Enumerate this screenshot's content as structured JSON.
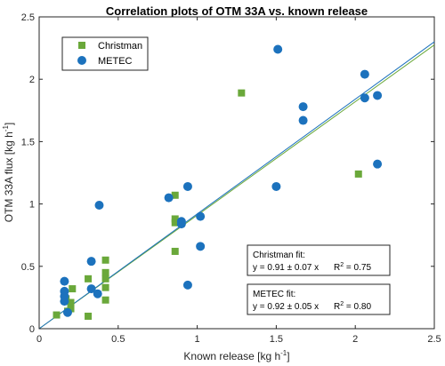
{
  "chart_data": {
    "type": "scatter",
    "title": "Correlation plots of OTM 33A vs. known release",
    "xlabel": "Known release [kg h",
    "xlabel_sup": "-1",
    "xlabel_close": "]",
    "ylabel": "OTM 33A flux [kg h",
    "ylabel_sup": "-1",
    "ylabel_close": "]",
    "xlim": [
      0,
      2.5
    ],
    "ylim": [
      0,
      2.5
    ],
    "xticks": [
      "0",
      "0.5",
      "1",
      "1.5",
      "2",
      "2.5"
    ],
    "yticks": [
      "0",
      "0.5",
      "1",
      "1.5",
      "2",
      "2.5"
    ],
    "legend_position": "top-left",
    "grid": false,
    "series": [
      {
        "name": "Christman",
        "marker": "square",
        "color": "#6aa83a",
        "points": [
          [
            0.11,
            0.11
          ],
          [
            0.17,
            0.24
          ],
          [
            0.18,
            0.14
          ],
          [
            0.2,
            0.16
          ],
          [
            0.2,
            0.21
          ],
          [
            0.21,
            0.32
          ],
          [
            0.31,
            0.1
          ],
          [
            0.31,
            0.4
          ],
          [
            0.42,
            0.23
          ],
          [
            0.42,
            0.33
          ],
          [
            0.42,
            0.4
          ],
          [
            0.42,
            0.45
          ],
          [
            0.42,
            0.55
          ],
          [
            0.86,
            0.85
          ],
          [
            0.86,
            0.88
          ],
          [
            0.86,
            1.07
          ],
          [
            0.86,
            0.62
          ],
          [
            1.28,
            1.89
          ],
          [
            2.02,
            1.24
          ]
        ],
        "fit": {
          "slope": 0.91
        }
      },
      {
        "name": "METEC",
        "marker": "circle",
        "color": "#1c72bd",
        "points": [
          [
            0.16,
            0.38
          ],
          [
            0.16,
            0.3
          ],
          [
            0.16,
            0.26
          ],
          [
            0.16,
            0.22
          ],
          [
            0.18,
            0.13
          ],
          [
            0.33,
            0.54
          ],
          [
            0.33,
            0.32
          ],
          [
            0.37,
            0.28
          ],
          [
            0.38,
            0.99
          ],
          [
            0.82,
            1.05
          ],
          [
            0.9,
            0.84
          ],
          [
            0.9,
            0.86
          ],
          [
            0.94,
            1.14
          ],
          [
            0.94,
            0.35
          ],
          [
            1.02,
            0.66
          ],
          [
            1.02,
            0.9
          ],
          [
            1.5,
            1.14
          ],
          [
            1.51,
            2.24
          ],
          [
            1.67,
            1.67
          ],
          [
            1.67,
            1.78
          ],
          [
            2.06,
            1.85
          ],
          [
            2.06,
            2.04
          ],
          [
            2.14,
            1.87
          ],
          [
            2.14,
            1.32
          ]
        ],
        "fit": {
          "slope": 0.92
        }
      }
    ],
    "annotations": [
      {
        "title": "Christman fit:",
        "eq": "y = 0.91 ± 0.07 x",
        "r2_label": "R",
        "r2_sup": "2",
        "r2_value": " = 0.75"
      },
      {
        "title": "METEC fit:",
        "eq": "y = 0.92 ± 0.05 x",
        "r2_label": "R",
        "r2_sup": "2",
        "r2_value": " = 0.80"
      }
    ]
  }
}
